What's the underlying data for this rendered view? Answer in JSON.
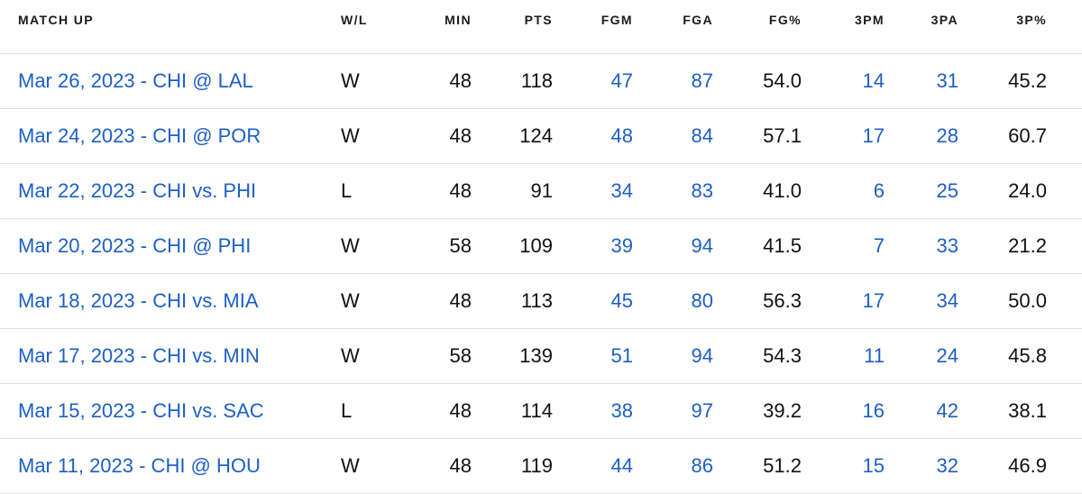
{
  "headers": {
    "matchup": "MATCH UP",
    "wl": "W/L",
    "min": "MIN",
    "pts": "PTS",
    "fgm": "FGM",
    "fga": "FGA",
    "fgp": "FG%",
    "tpm": "3PM",
    "tpa": "3PA",
    "tpp": "3P%"
  },
  "colors": {
    "link": "#1d5fc5",
    "text": "#111111",
    "divider": "#e1e1e1"
  },
  "rows": [
    {
      "matchup": "Mar 26, 2023 - CHI @ LAL",
      "wl": "W",
      "min": "48",
      "pts": "118",
      "fgm": "47",
      "fga": "87",
      "fgp": "54.0",
      "tpm": "14",
      "tpa": "31",
      "tpp": "45.2"
    },
    {
      "matchup": "Mar 24, 2023 - CHI @ POR",
      "wl": "W",
      "min": "48",
      "pts": "124",
      "fgm": "48",
      "fga": "84",
      "fgp": "57.1",
      "tpm": "17",
      "tpa": "28",
      "tpp": "60.7"
    },
    {
      "matchup": "Mar 22, 2023 - CHI vs. PHI",
      "wl": "L",
      "min": "48",
      "pts": "91",
      "fgm": "34",
      "fga": "83",
      "fgp": "41.0",
      "tpm": "6",
      "tpa": "25",
      "tpp": "24.0"
    },
    {
      "matchup": "Mar 20, 2023 - CHI @ PHI",
      "wl": "W",
      "min": "58",
      "pts": "109",
      "fgm": "39",
      "fga": "94",
      "fgp": "41.5",
      "tpm": "7",
      "tpa": "33",
      "tpp": "21.2"
    },
    {
      "matchup": "Mar 18, 2023 - CHI vs. MIA",
      "wl": "W",
      "min": "48",
      "pts": "113",
      "fgm": "45",
      "fga": "80",
      "fgp": "56.3",
      "tpm": "17",
      "tpa": "34",
      "tpp": "50.0"
    },
    {
      "matchup": "Mar 17, 2023 - CHI vs. MIN",
      "wl": "W",
      "min": "58",
      "pts": "139",
      "fgm": "51",
      "fga": "94",
      "fgp": "54.3",
      "tpm": "11",
      "tpa": "24",
      "tpp": "45.8"
    },
    {
      "matchup": "Mar 15, 2023 - CHI vs. SAC",
      "wl": "L",
      "min": "48",
      "pts": "114",
      "fgm": "38",
      "fga": "97",
      "fgp": "39.2",
      "tpm": "16",
      "tpa": "42",
      "tpp": "38.1"
    },
    {
      "matchup": "Mar 11, 2023 - CHI @ HOU",
      "wl": "W",
      "min": "48",
      "pts": "119",
      "fgm": "44",
      "fga": "86",
      "fgp": "51.2",
      "tpm": "15",
      "tpa": "32",
      "tpp": "46.9"
    }
  ]
}
